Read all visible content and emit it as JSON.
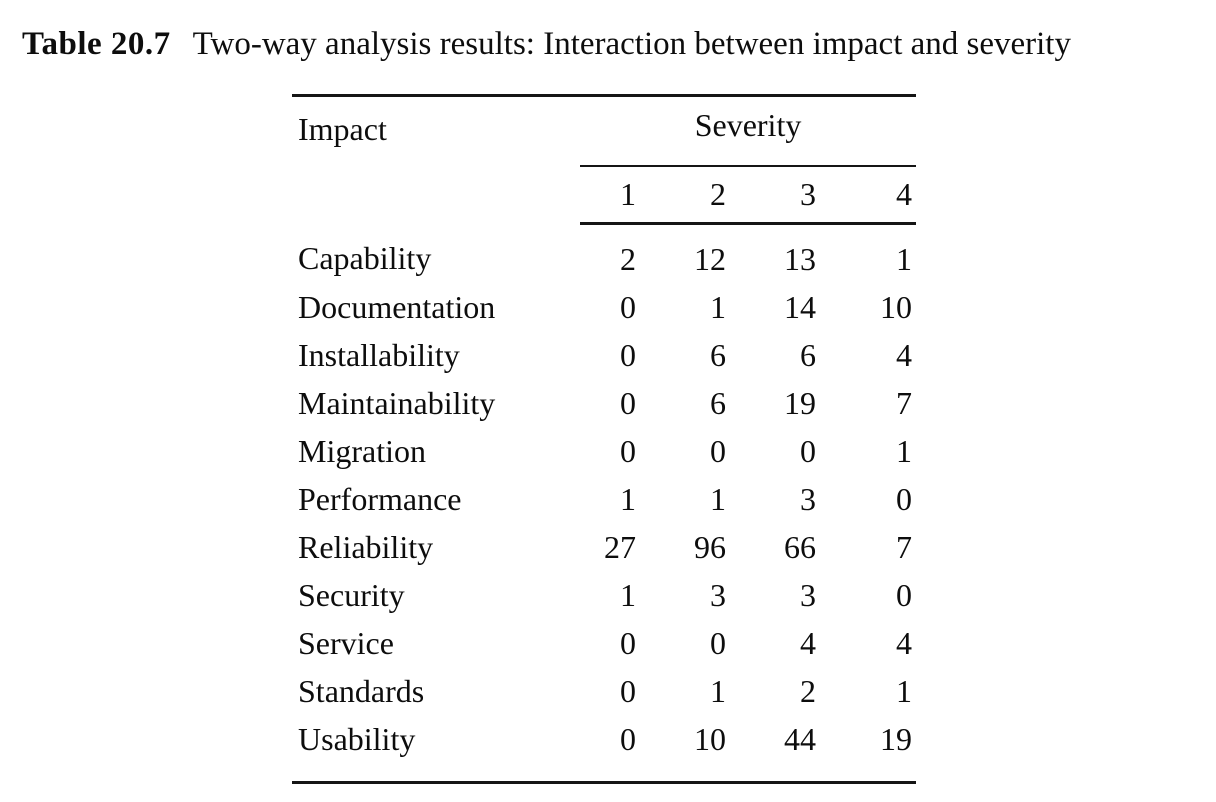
{
  "caption": {
    "label": "Table 20.7",
    "text": "Two-way analysis results: Interaction between impact and severity"
  },
  "chart_data": {
    "type": "table",
    "title": "Two-way analysis results: Interaction between impact and severity",
    "row_header": "Impact",
    "column_group_header": "Severity",
    "column_headers": [
      "1",
      "2",
      "3",
      "4"
    ],
    "rows": [
      {
        "label": "Capability",
        "values": [
          2,
          12,
          13,
          1
        ]
      },
      {
        "label": "Documentation",
        "values": [
          0,
          1,
          14,
          10
        ]
      },
      {
        "label": "Installability",
        "values": [
          0,
          6,
          6,
          4
        ]
      },
      {
        "label": "Maintainability",
        "values": [
          0,
          6,
          19,
          7
        ]
      },
      {
        "label": "Migration",
        "values": [
          0,
          0,
          0,
          1
        ]
      },
      {
        "label": "Performance",
        "values": [
          1,
          1,
          3,
          0
        ]
      },
      {
        "label": "Reliability",
        "values": [
          27,
          96,
          66,
          7
        ]
      },
      {
        "label": "Security",
        "values": [
          1,
          3,
          3,
          0
        ]
      },
      {
        "label": "Service",
        "values": [
          0,
          0,
          4,
          4
        ]
      },
      {
        "label": "Standards",
        "values": [
          0,
          1,
          2,
          1
        ]
      },
      {
        "label": "Usability",
        "values": [
          0,
          10,
          44,
          19
        ]
      }
    ]
  }
}
